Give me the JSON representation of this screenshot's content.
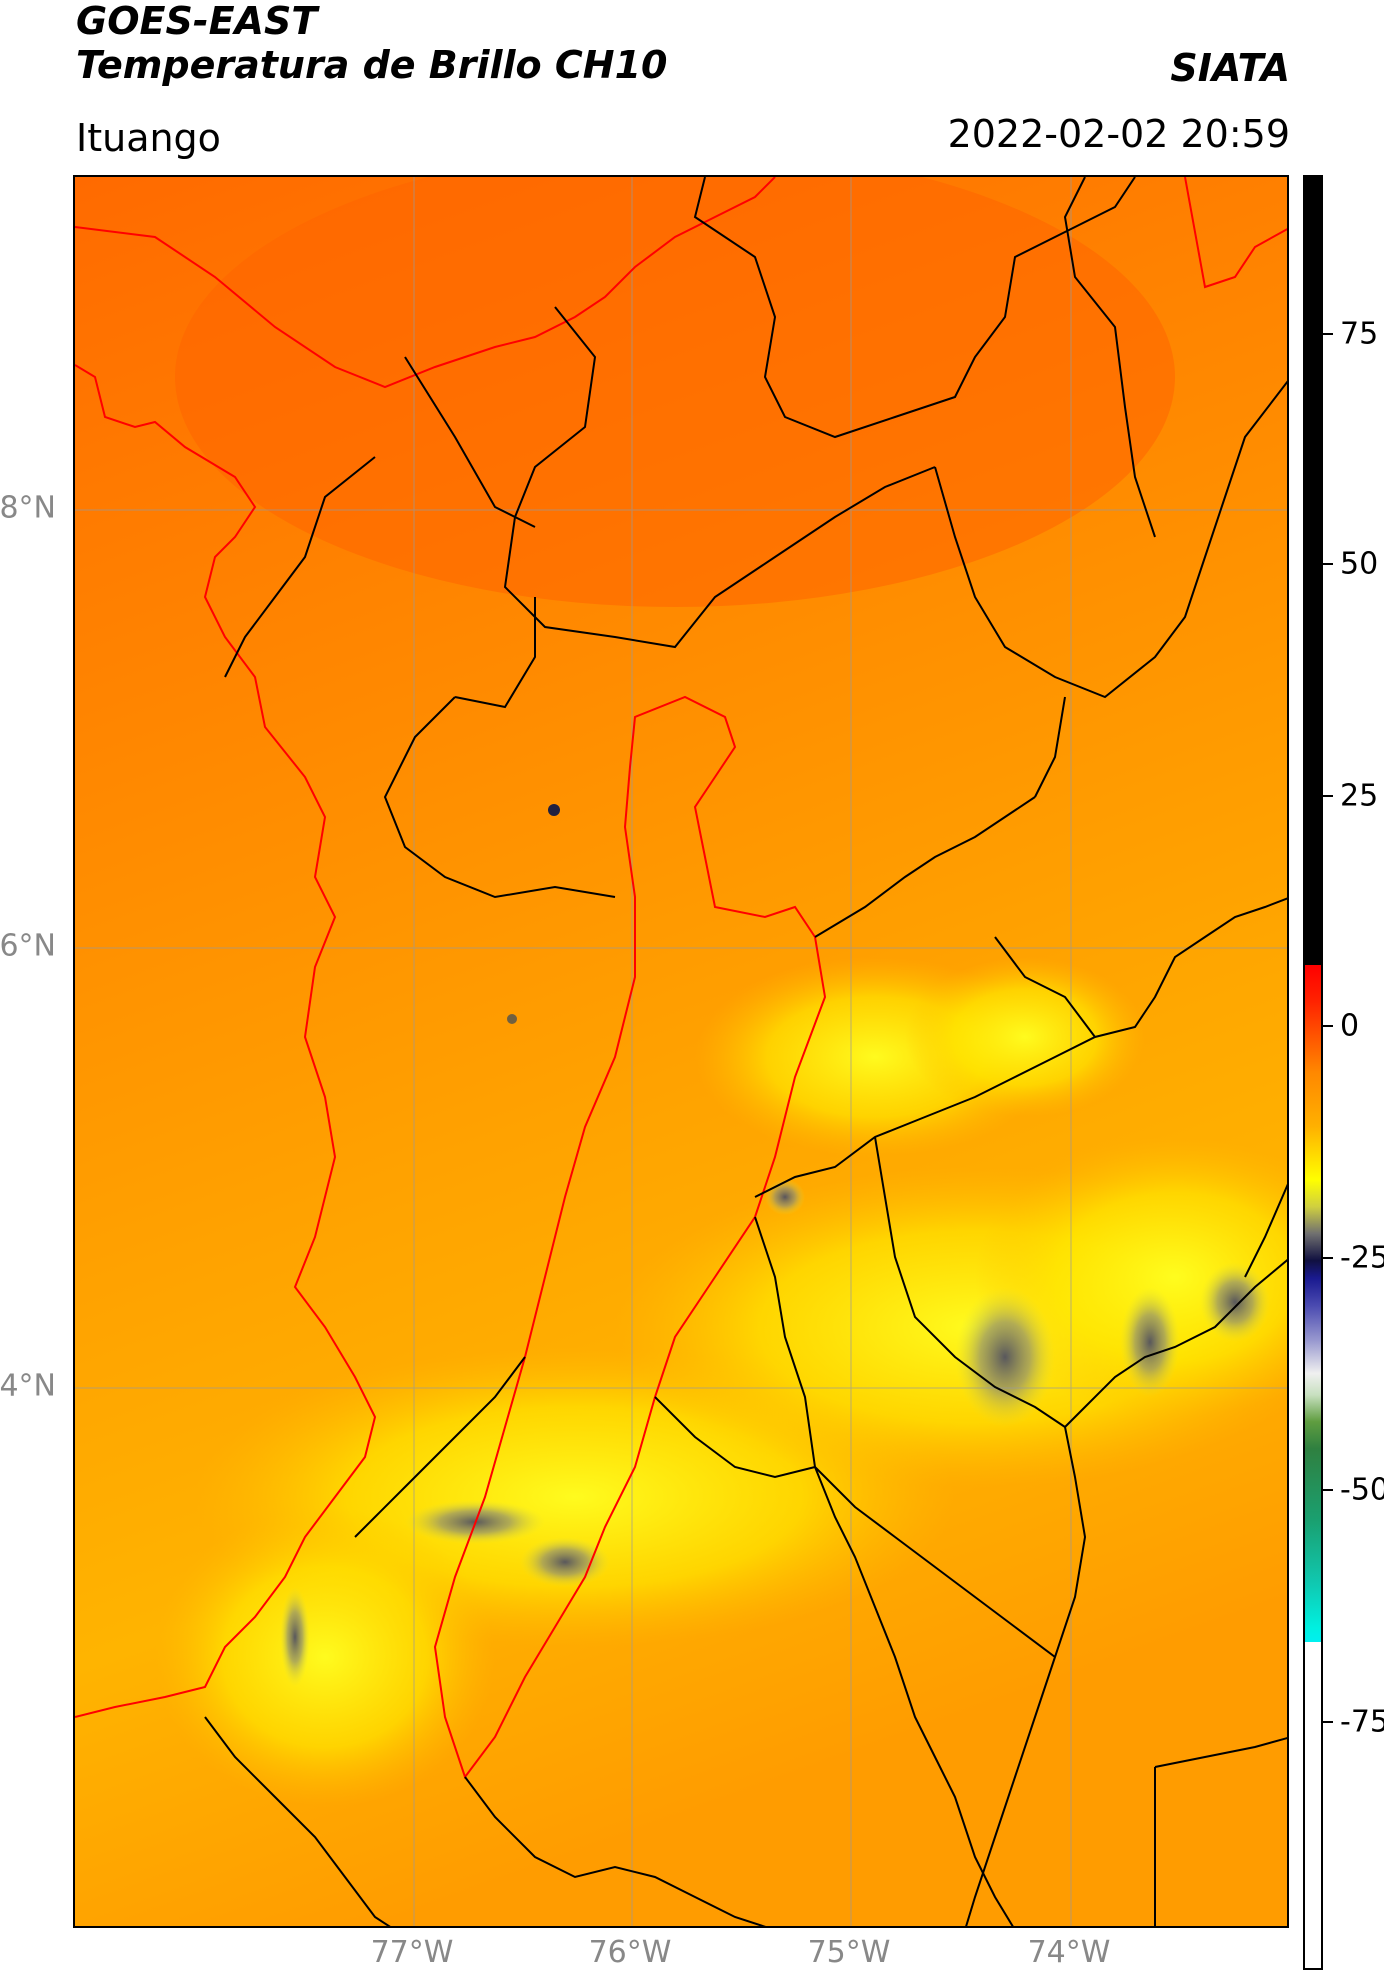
{
  "header": {
    "title_line1": "GOES-EAST",
    "title_line2": "Temperatura de Brillo CH10",
    "org": "SIATA",
    "region": "Ituango",
    "datetime": "2022-02-02 20:59"
  },
  "map": {
    "lat_labels": [
      "8°N",
      "6°N",
      "4°N"
    ],
    "lon_labels": [
      "77°W",
      "76°W",
      "75°W",
      "74°W"
    ]
  },
  "colorbar": {
    "tick_labels": [
      "75",
      "50",
      "25",
      "0",
      "-25",
      "-50",
      "-75"
    ],
    "colors": {
      "dark": "#000000",
      "warm_red": "#ff0000",
      "orange": "#ff8800",
      "yellow": "#ffff00",
      "gray": "#707070",
      "navy": "#101040",
      "white": "#f0f0f0",
      "green": "#2f8040",
      "cyan": "#00f0e0"
    }
  }
}
